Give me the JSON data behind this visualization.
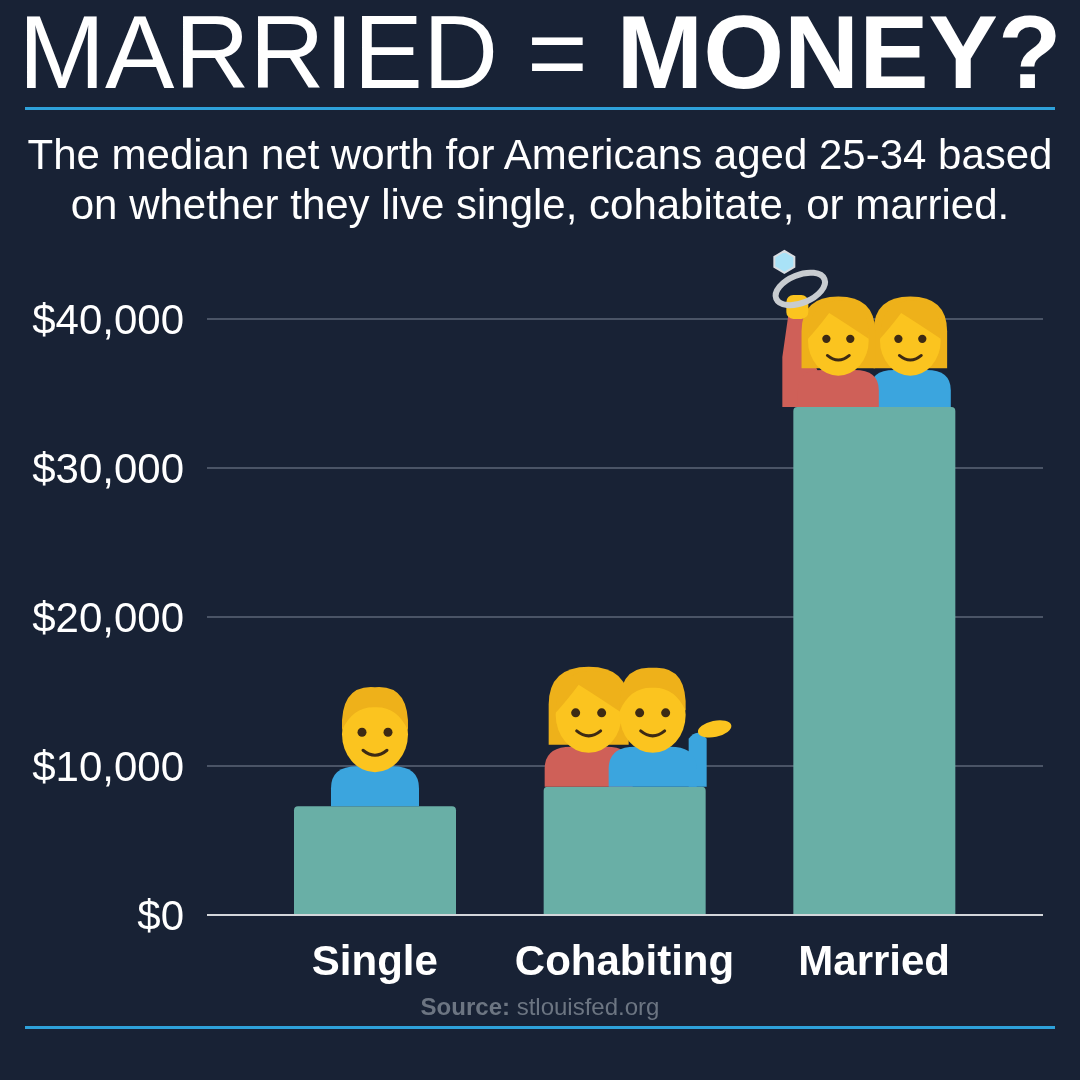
{
  "chart_data": {
    "type": "bar",
    "title": "MARRIED = MONEY?",
    "subtitle": "The median net worth for Americans aged 25-34 based on whether they live single, cohabitate, or married.",
    "categories": [
      "Single",
      "Cohabiting",
      "Married"
    ],
    "values": [
      7300,
      8600,
      34100
    ],
    "color": "#69afa6",
    "ylim": [
      0,
      40000
    ],
    "yticks": [
      {
        "value": 0,
        "label": "$0"
      },
      {
        "value": 10000,
        "label": "$10,000"
      },
      {
        "value": 20000,
        "label": "$20,000"
      },
      {
        "value": 30000,
        "label": "$30,000"
      },
      {
        "value": 40000,
        "label": "$40,000"
      }
    ],
    "grid": "y",
    "annotations": [
      "Source: stlouisfed.org"
    ]
  }
}
